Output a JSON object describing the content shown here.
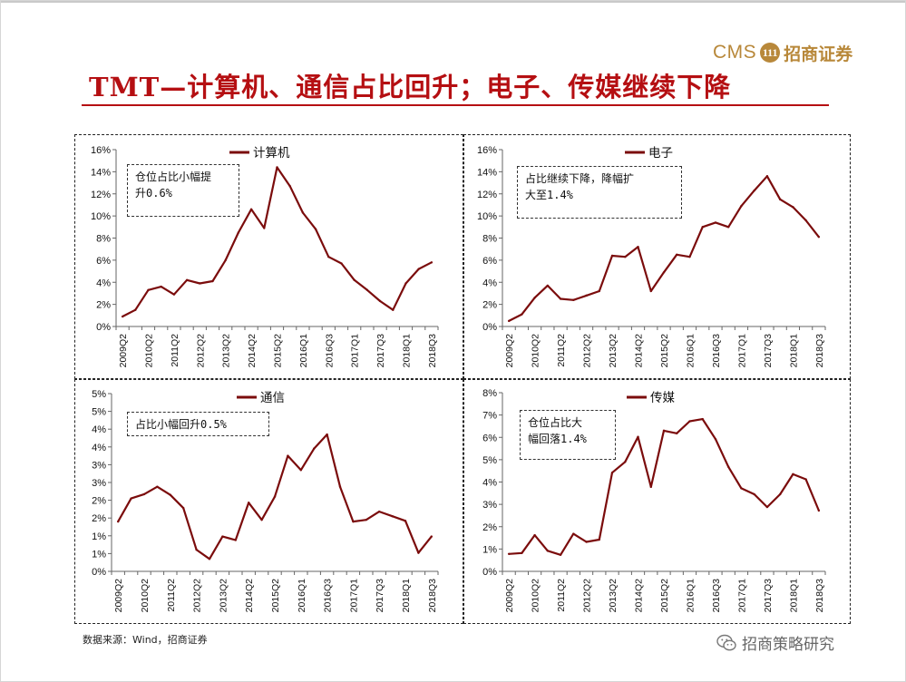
{
  "header": {
    "title": "TMT—计算机、通信占比回升；电子、传媒继续下降",
    "logo_latin": "CMS",
    "logo_mark": "111",
    "logo_cn": "招商证券"
  },
  "footer": {
    "source": "数据来源：Wind，招商证券",
    "wechat_name": "招商策略研究"
  },
  "colors": {
    "title": "#b50f12",
    "series_line": "#7b0c0c",
    "logo": "#b8883a"
  },
  "chart_data": [
    {
      "type": "line",
      "series_name": "计算机",
      "annotation": "仓位占比小幅提\n升0.6%",
      "x_tick_labels": [
        "2009Q2",
        "2010Q2",
        "2011Q2",
        "2012Q2",
        "2013Q2",
        "2014Q2",
        "2015Q2",
        "2016Q1",
        "2016Q3",
        "2017Q1",
        "2017Q3",
        "2018Q1",
        "2018Q3"
      ],
      "y_tick_labels": [
        "0%",
        "2%",
        "4%",
        "6%",
        "8%",
        "10%",
        "12%",
        "14%",
        "16%"
      ],
      "ylim": [
        0,
        16
      ],
      "values": [
        0.9,
        1.5,
        3.3,
        3.6,
        2.9,
        4.2,
        3.9,
        4.1,
        6.0,
        8.5,
        10.6,
        8.9,
        14.4,
        12.7,
        10.3,
        8.8,
        6.3,
        5.7,
        4.2,
        3.3,
        2.3,
        1.5,
        3.9,
        5.2,
        5.8
      ]
    },
    {
      "type": "line",
      "series_name": "电子",
      "annotation": "占比继续下降，降幅扩\n大至1.4%",
      "x_tick_labels": [
        "2009Q2",
        "2010Q2",
        "2011Q2",
        "2012Q2",
        "2013Q2",
        "2014Q2",
        "2015Q2",
        "2016Q1",
        "2016Q3",
        "2017Q1",
        "2017Q3",
        "2018Q1",
        "2018Q3"
      ],
      "y_tick_labels": [
        "0%",
        "2%",
        "4%",
        "6%",
        "8%",
        "10%",
        "12%",
        "14%",
        "16%"
      ],
      "ylim": [
        0,
        16
      ],
      "values": [
        0.5,
        1.1,
        2.6,
        3.7,
        2.5,
        2.4,
        2.8,
        3.2,
        6.4,
        6.3,
        7.2,
        3.2,
        4.9,
        6.5,
        6.3,
        9.0,
        9.4,
        9.0,
        10.9,
        12.3,
        13.6,
        11.5,
        10.8,
        9.6,
        8.1
      ]
    },
    {
      "type": "line",
      "series_name": "通信",
      "annotation": "占比小幅回升0.5%",
      "x_tick_labels": [
        "2009Q2",
        "2010Q2",
        "2011Q2",
        "2012Q2",
        "2013Q2",
        "2014Q2",
        "2015Q2",
        "2016Q1",
        "2016Q3",
        "2017Q1",
        "2017Q3",
        "2018Q1",
        "2018Q3"
      ],
      "y_tick_labels": [
        "0%",
        "1%",
        "1%",
        "2%",
        "2%",
        "3%",
        "3%",
        "4%",
        "4%",
        "5%",
        "5%"
      ],
      "ylim": [
        0,
        5
      ],
      "values": [
        1.4,
        2.05,
        2.17,
        2.38,
        2.15,
        1.78,
        0.61,
        0.35,
        0.98,
        0.88,
        1.93,
        1.45,
        2.1,
        3.25,
        2.85,
        3.45,
        3.85,
        2.38,
        1.4,
        1.45,
        1.68,
        1.55,
        1.42,
        0.52,
        0.98
      ]
    },
    {
      "type": "line",
      "series_name": "传媒",
      "annotation": "仓位占比大\n幅回落1.4%",
      "x_tick_labels": [
        "2009Q2",
        "2010Q2",
        "2011Q2",
        "2012Q2",
        "2013Q2",
        "2014Q2",
        "2015Q2",
        "2016Q1",
        "2016Q3",
        "2017Q1",
        "2017Q3",
        "2018Q1",
        "2018Q3"
      ],
      "y_tick_labels": [
        "0%",
        "1%",
        "2%",
        "3%",
        "4%",
        "5%",
        "6%",
        "7%",
        "8%"
      ],
      "ylim": [
        0,
        8
      ],
      "values": [
        0.78,
        0.82,
        1.62,
        0.92,
        0.74,
        1.68,
        1.32,
        1.42,
        4.42,
        4.9,
        6.02,
        3.78,
        6.3,
        6.18,
        6.72,
        6.82,
        5.92,
        4.68,
        3.72,
        3.45,
        2.88,
        3.45,
        4.35,
        4.12,
        2.72
      ]
    }
  ]
}
